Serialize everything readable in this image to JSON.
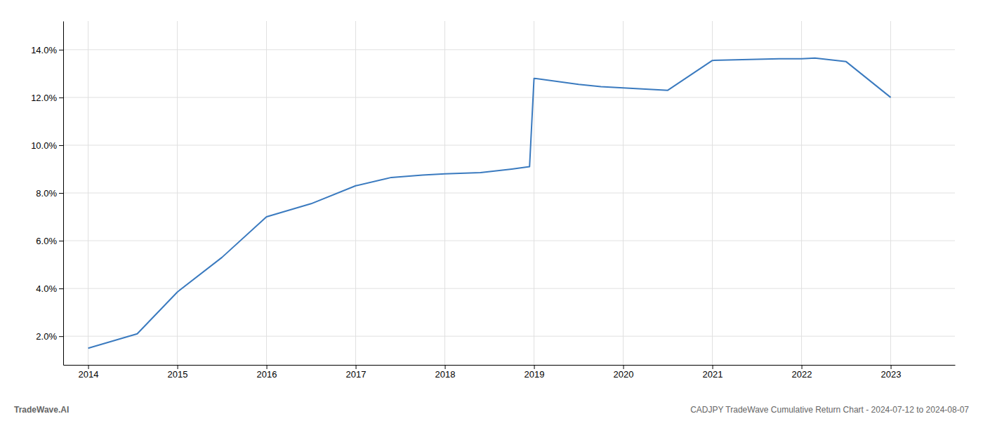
{
  "chart_data": {
    "type": "line",
    "x": [
      2014.0,
      2014.55,
      2015.0,
      2015.5,
      2016.0,
      2016.5,
      2017.0,
      2017.4,
      2017.75,
      2018.0,
      2018.4,
      2018.75,
      2018.95,
      2019.0,
      2019.5,
      2019.75,
      2020.0,
      2020.25,
      2020.5,
      2021.0,
      2021.5,
      2021.75,
      2022.0,
      2022.15,
      2022.5,
      2023.0
    ],
    "values": [
      1.5,
      2.1,
      3.85,
      5.3,
      7.0,
      7.55,
      8.3,
      8.65,
      8.75,
      8.8,
      8.85,
      9.0,
      9.1,
      12.8,
      12.55,
      12.45,
      12.4,
      12.35,
      12.3,
      13.55,
      13.6,
      13.62,
      13.62,
      13.65,
      13.5,
      12.0
    ],
    "color": "#3a7abf",
    "xlim": [
      2013.72,
      2023.72
    ],
    "xticks": [
      2014,
      2015,
      2016,
      2017,
      2018,
      2019,
      2020,
      2021,
      2022,
      2023
    ],
    "ylim": [
      0.8,
      15.2
    ],
    "yticks": [
      {
        "value": 2.0,
        "label": "2.0%"
      },
      {
        "value": 4.0,
        "label": "4.0%"
      },
      {
        "value": 6.0,
        "label": "6.0%"
      },
      {
        "value": 8.0,
        "label": "8.0%"
      },
      {
        "value": 10.0,
        "label": "10.0%"
      },
      {
        "value": 12.0,
        "label": "12.0%"
      },
      {
        "value": 14.0,
        "label": "14.0%"
      }
    ],
    "grid": true,
    "annotations": [
      "TradeWave.AI",
      "CADJPY TradeWave Cumulative Return Chart - 2024-07-12 to 2024-08-07"
    ]
  }
}
